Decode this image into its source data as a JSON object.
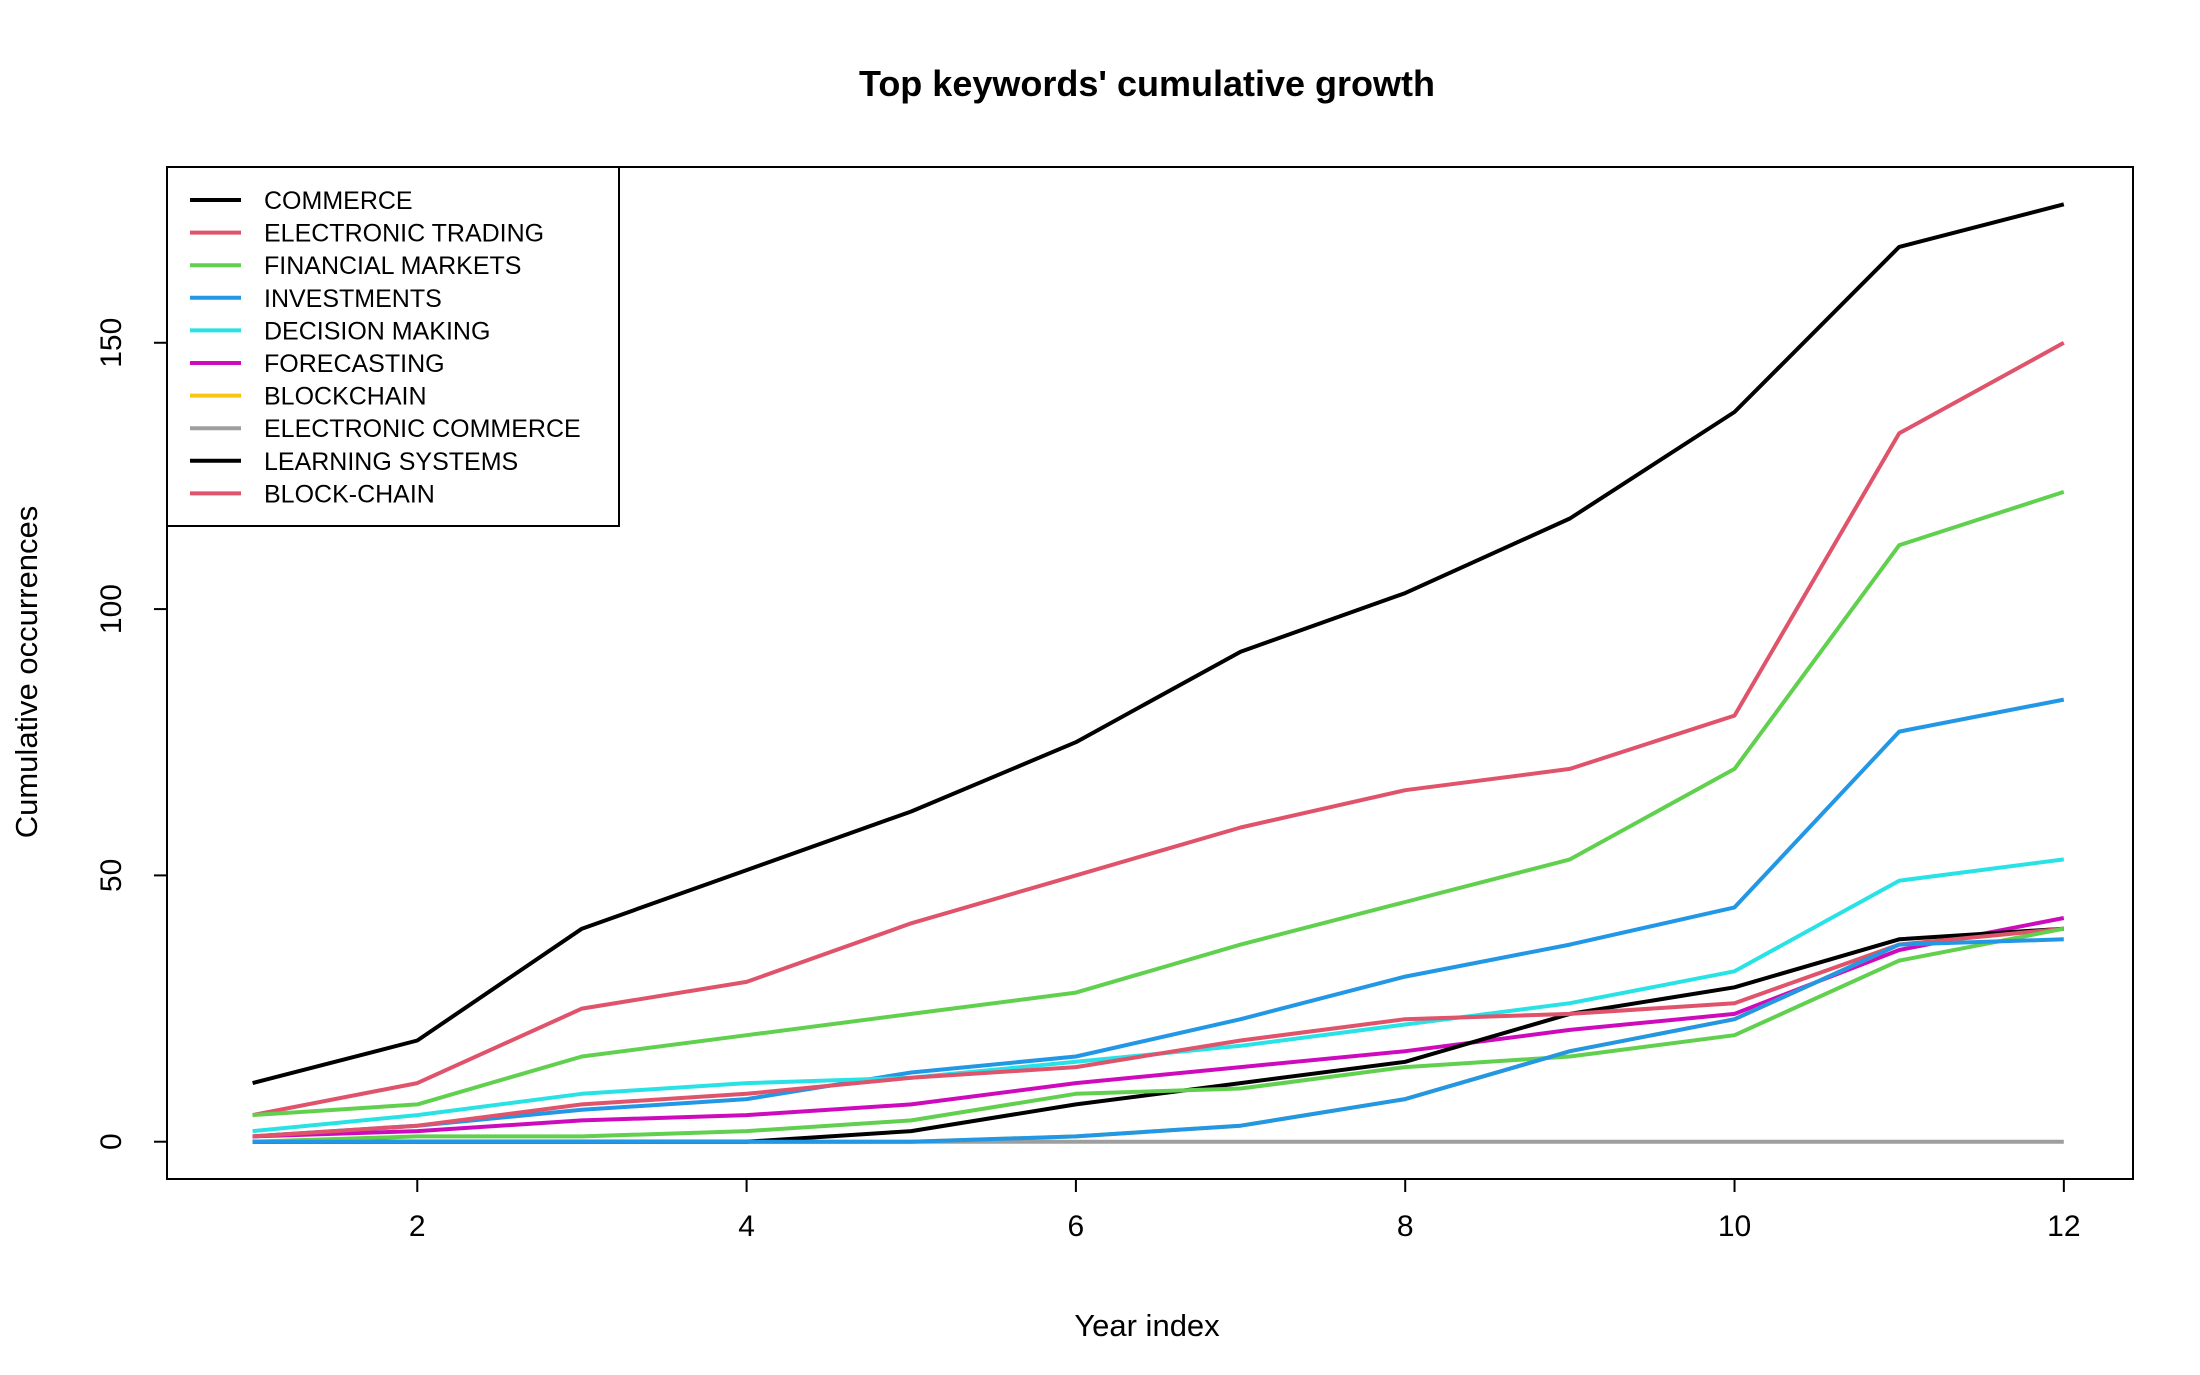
{
  "chart_data": {
    "type": "line",
    "title": "Top keywords' cumulative growth",
    "xlabel": "Year index",
    "ylabel": "Cumulative occurrences",
    "x": [
      1,
      2,
      3,
      4,
      5,
      6,
      7,
      8,
      9,
      10,
      11,
      12
    ],
    "xlim": [
      0.48,
      12.42
    ],
    "ylim": [
      -7,
      183
    ],
    "x_ticks": [
      2,
      4,
      6,
      8,
      10,
      12
    ],
    "y_ticks": [
      0,
      50,
      100,
      150
    ],
    "grid": false,
    "legend_position": "top-left",
    "series": [
      {
        "name": "COMMERCE",
        "color": "#000000",
        "values": [
          11,
          19,
          40,
          51,
          62,
          75,
          92,
          103,
          117,
          137,
          168,
          176
        ]
      },
      {
        "name": "ELECTRONIC TRADING",
        "color": "#DF536B",
        "values": [
          5,
          11,
          25,
          30,
          41,
          50,
          59,
          66,
          70,
          80,
          133,
          150
        ]
      },
      {
        "name": "FINANCIAL MARKETS",
        "color": "#61D04F",
        "values": [
          5,
          7,
          16,
          20,
          24,
          28,
          37,
          45,
          53,
          70,
          112,
          122
        ]
      },
      {
        "name": "INVESTMENTS",
        "color": "#2297E6",
        "values": [
          1,
          3,
          6,
          8,
          13,
          16,
          23,
          31,
          37,
          44,
          77,
          83
        ]
      },
      {
        "name": "DECISION MAKING",
        "color": "#28E2E5",
        "values": [
          2,
          5,
          9,
          11,
          12,
          15,
          18,
          22,
          26,
          32,
          49,
          53
        ]
      },
      {
        "name": "FORECASTING",
        "color": "#CD0BBC",
        "values": [
          1,
          2,
          4,
          5,
          7,
          11,
          14,
          17,
          21,
          24,
          36,
          42
        ]
      },
      {
        "name": "BLOCKCHAIN",
        "color": "#F5C710",
        "values": [
          0,
          0,
          0,
          0,
          0,
          1,
          3,
          8,
          17,
          23,
          37,
          40
        ]
      },
      {
        "name": "ELECTRONIC COMMERCE",
        "color": "#9E9E9E",
        "values": [
          0,
          0,
          0,
          0,
          0,
          0,
          0,
          0,
          0,
          0,
          0,
          0
        ]
      },
      {
        "name": "LEARNING SYSTEMS",
        "color": "#000000",
        "values": [
          0,
          0,
          0,
          0,
          2,
          7,
          11,
          15,
          24,
          29,
          38,
          40
        ]
      },
      {
        "name": "BLOCK-CHAIN",
        "color": "#DF536B",
        "values": [
          1,
          3,
          7,
          9,
          12,
          14,
          19,
          23,
          24,
          26,
          37,
          40
        ]
      },
      {
        "name": "",
        "color": "#61D04F",
        "values": [
          0,
          1,
          1,
          2,
          4,
          9,
          10,
          14,
          16,
          20,
          34,
          40
        ]
      },
      {
        "name": "",
        "color": "#2297E6",
        "values": [
          0,
          0,
          0,
          0,
          0,
          1,
          3,
          8,
          17,
          23,
          37,
          38
        ]
      }
    ]
  }
}
